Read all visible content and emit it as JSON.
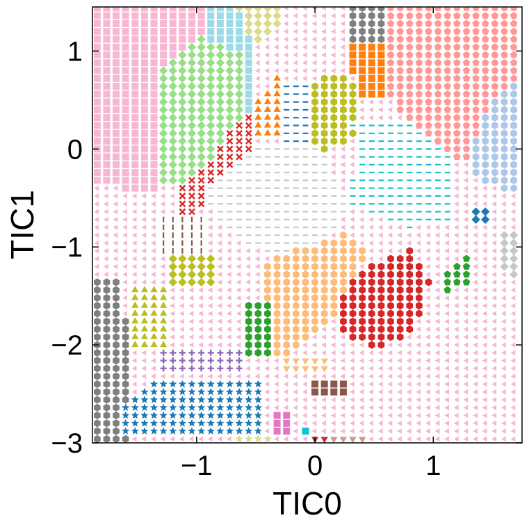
{
  "chart_data": {
    "type": "scatter",
    "title": "",
    "xlabel": "TIC0",
    "ylabel": "TIC1",
    "xlim": [
      -1.88,
      1.75
    ],
    "ylim": [
      -3.0,
      1.45
    ],
    "grid": false,
    "legend": "none",
    "x_ticks": [
      -1,
      0,
      1
    ],
    "x_tick_labels": [
      "−1",
      "0",
      "1"
    ],
    "y_ticks": [
      -3,
      -2,
      -1,
      0,
      1
    ],
    "y_tick_labels": [
      "−3",
      "−2",
      "−1",
      "0",
      "1"
    ],
    "grid_step": 0.08,
    "background_state": {
      "name": "state-pink-left-triangle",
      "marker": "triangle-left",
      "color": "#f7b6d2"
    },
    "regions": [
      {
        "name": "state-pink-square",
        "marker": "square",
        "color": "#f7b6d2",
        "polygon": [
          [
            -1.88,
            1.45
          ],
          [
            -0.95,
            1.45
          ],
          [
            -0.95,
            1.15
          ],
          [
            -1.3,
            0.85
          ],
          [
            -1.35,
            -0.45
          ],
          [
            -1.88,
            -0.35
          ]
        ]
      },
      {
        "name": "state-lightgreen-diamond",
        "marker": "diamond",
        "color": "#98df8a",
        "polygon": [
          [
            -0.95,
            1.2
          ],
          [
            -0.62,
            0.95
          ],
          [
            -0.62,
            0.35
          ],
          [
            -0.85,
            -0.05
          ],
          [
            -1.1,
            -0.35
          ],
          [
            -1.35,
            -0.35
          ],
          [
            -1.35,
            0.75
          ],
          [
            -1.2,
            0.95
          ]
        ]
      },
      {
        "name": "state-skyblue-square",
        "marker": "square",
        "color": "#9edae5",
        "polygon": [
          [
            -0.95,
            1.45
          ],
          [
            -0.65,
            1.45
          ],
          [
            -0.5,
            1.1
          ],
          [
            -0.52,
            0.35
          ],
          [
            -0.62,
            0.35
          ],
          [
            -0.62,
            0.95
          ],
          [
            -0.95,
            1.15
          ]
        ]
      },
      {
        "name": "state-olive-diamond",
        "marker": "diamond",
        "color": "#dbdb8d",
        "polygon": [
          [
            -0.65,
            1.45
          ],
          [
            -0.3,
            1.45
          ],
          [
            -0.3,
            1.25
          ],
          [
            -0.5,
            1.1
          ],
          [
            -0.6,
            1.25
          ]
        ]
      },
      {
        "name": "state-salmon-pentagon",
        "marker": "pentagon",
        "color": "#ff9896",
        "polygon": [
          [
            0.62,
            1.45
          ],
          [
            1.75,
            1.45
          ],
          [
            1.75,
            0.72
          ],
          [
            1.6,
            0.55
          ],
          [
            1.45,
            0.4
          ],
          [
            1.3,
            -0.1
          ],
          [
            0.8,
            -0.1
          ],
          [
            0.72,
            0.4
          ],
          [
            0.62,
            0.6
          ]
        ]
      },
      {
        "name": "state-lightblue-hexagon",
        "marker": "hexagon",
        "color": "#aec7e8",
        "polygon": [
          [
            1.45,
            0.4
          ],
          [
            1.6,
            0.6
          ],
          [
            1.75,
            0.72
          ],
          [
            1.75,
            -0.45
          ],
          [
            1.4,
            -0.35
          ],
          [
            1.3,
            -0.1
          ]
        ]
      },
      {
        "name": "state-orange-square",
        "marker": "square",
        "color": "#ff7f0e",
        "polygon": [
          [
            0.3,
            1.05
          ],
          [
            0.62,
            1.05
          ],
          [
            0.62,
            0.5
          ],
          [
            0.4,
            0.5
          ],
          [
            0.3,
            0.8
          ]
        ]
      },
      {
        "name": "state-gray-hexagon",
        "marker": "hexagon",
        "color": "#7f7f7f",
        "polygon": [
          [
            0.3,
            1.45
          ],
          [
            0.62,
            1.45
          ],
          [
            0.62,
            1.1
          ],
          [
            0.3,
            1.1
          ]
        ]
      },
      {
        "name": "state-olive-hexagon",
        "marker": "hexagon",
        "color": "#bcbd22",
        "polygon": [
          [
            -0.05,
            0.7
          ],
          [
            0.25,
            0.75
          ],
          [
            0.4,
            0.55
          ],
          [
            0.35,
            0.1
          ],
          [
            0.05,
            -0.02
          ],
          [
            -0.1,
            0.25
          ]
        ]
      },
      {
        "name": "state-blue-hline",
        "marker": "hline",
        "color": "#1f77b4",
        "polygon": [
          [
            -0.25,
            0.72
          ],
          [
            0.0,
            0.72
          ],
          [
            -0.05,
            0.02
          ],
          [
            -0.25,
            0.02
          ]
        ]
      },
      {
        "name": "state-orange-triangle",
        "marker": "triangle-up",
        "color": "#ff7f0e",
        "polygon": [
          [
            -0.55,
            0.48
          ],
          [
            -0.25,
            0.8
          ],
          [
            -0.25,
            0.15
          ],
          [
            -0.55,
            0.15
          ]
        ]
      },
      {
        "name": "state-cyan-hline",
        "marker": "hline",
        "color": "#17becf",
        "polygon": [
          [
            0.3,
            0.3
          ],
          [
            0.8,
            0.3
          ],
          [
            1.2,
            -0.1
          ],
          [
            1.2,
            -0.7
          ],
          [
            0.8,
            -0.8
          ],
          [
            0.3,
            -0.55
          ],
          [
            0.35,
            0.05
          ]
        ]
      },
      {
        "name": "state-red-x",
        "marker": "x",
        "color": "#d62728",
        "polygon": [
          [
            -0.62,
            0.35
          ],
          [
            -0.52,
            0.35
          ],
          [
            -0.5,
            0.1
          ],
          [
            -0.7,
            -0.35
          ],
          [
            -1.1,
            -0.7
          ],
          [
            -1.2,
            -0.45
          ],
          [
            -0.85,
            -0.05
          ]
        ]
      },
      {
        "name": "state-lightgray-hline",
        "marker": "hline",
        "color": "#c7c7c7",
        "polygon": [
          [
            -0.5,
            0.05
          ],
          [
            0.05,
            0.0
          ],
          [
            0.3,
            -0.55
          ],
          [
            0.15,
            -0.9
          ],
          [
            -0.3,
            -1.1
          ],
          [
            -0.7,
            -0.9
          ],
          [
            -0.95,
            -0.45
          ]
        ]
      },
      {
        "name": "state-brown-vline",
        "marker": "vline",
        "color": "#8c564b",
        "polygon": [
          [
            -1.3,
            -0.7
          ],
          [
            -0.95,
            -0.7
          ],
          [
            -0.9,
            -1.05
          ],
          [
            -1.3,
            -1.05
          ]
        ]
      },
      {
        "name": "state-olive-diamond-mid",
        "marker": "diamond",
        "color": "#bcbd22",
        "polygon": [
          [
            -1.22,
            -1.05
          ],
          [
            -0.86,
            -1.05
          ],
          [
            -0.86,
            -1.42
          ],
          [
            -1.22,
            -1.42
          ]
        ]
      },
      {
        "name": "state-peach-hexagon",
        "marker": "hexagon",
        "color": "#ffbb78",
        "polygon": [
          [
            -0.4,
            -1.15
          ],
          [
            0.25,
            -0.85
          ],
          [
            0.45,
            -1.05
          ],
          [
            0.3,
            -1.4
          ],
          [
            0.15,
            -1.75
          ],
          [
            -0.3,
            -2.2
          ],
          [
            -0.4,
            -1.8
          ]
        ]
      },
      {
        "name": "state-red-hexagon",
        "marker": "hexagon",
        "color": "#d62728",
        "polygon": [
          [
            0.4,
            -1.2
          ],
          [
            0.8,
            -1.0
          ],
          [
            0.98,
            -1.35
          ],
          [
            0.85,
            -1.85
          ],
          [
            0.5,
            -2.05
          ],
          [
            0.18,
            -1.85
          ],
          [
            0.2,
            -1.5
          ]
        ]
      },
      {
        "name": "state-green-hexagon",
        "marker": "hexagon",
        "color": "#2ca02c",
        "polygon": [
          [
            -0.56,
            -1.58
          ],
          [
            -0.35,
            -1.58
          ],
          [
            -0.35,
            -2.1
          ],
          [
            -0.56,
            -2.1
          ]
        ]
      },
      {
        "name": "state-olive-triangle",
        "marker": "triangle-up",
        "color": "#bcbd22",
        "polygon": [
          [
            -1.55,
            -1.4
          ],
          [
            -1.25,
            -1.4
          ],
          [
            -1.22,
            -2.05
          ],
          [
            -1.55,
            -2.05
          ]
        ]
      },
      {
        "name": "state-gray-hexagon-left",
        "marker": "hexagon",
        "color": "#7f7f7f",
        "polygon": [
          [
            -1.88,
            -1.3
          ],
          [
            -1.65,
            -1.3
          ],
          [
            -1.55,
            -2.1
          ],
          [
            -1.6,
            -3.0
          ],
          [
            -1.88,
            -3.0
          ]
        ]
      },
      {
        "name": "state-purple-plus",
        "marker": "plus",
        "color": "#9467bd",
        "polygon": [
          [
            -1.3,
            -2.05
          ],
          [
            -0.6,
            -2.05
          ],
          [
            -0.6,
            -2.3
          ],
          [
            -1.3,
            -2.3
          ]
        ]
      },
      {
        "name": "state-blue-star",
        "marker": "star",
        "color": "#1f77b4",
        "polygon": [
          [
            -1.35,
            -2.38
          ],
          [
            -0.45,
            -2.38
          ],
          [
            -0.4,
            -2.9
          ],
          [
            -1.6,
            -2.9
          ],
          [
            -1.6,
            -2.6
          ]
        ]
      },
      {
        "name": "state-yellow-star",
        "marker": "star",
        "color": "#dbdb8d",
        "polygon": [
          [
            -0.68,
            -2.9
          ],
          [
            -0.35,
            -2.9
          ],
          [
            -0.35,
            -3.0
          ],
          [
            -0.68,
            -3.0
          ]
        ]
      },
      {
        "name": "state-magenta-square",
        "marker": "square",
        "color": "#e377c2",
        "polygon": [
          [
            -0.35,
            -2.65
          ],
          [
            -0.2,
            -2.65
          ],
          [
            -0.2,
            -2.95
          ],
          [
            -0.35,
            -2.95
          ]
        ]
      },
      {
        "name": "state-cyan-square",
        "marker": "square",
        "color": "#17becf",
        "polygon": [
          [
            -0.15,
            -2.8
          ],
          [
            -0.05,
            -2.8
          ],
          [
            -0.05,
            -2.95
          ],
          [
            -0.15,
            -2.95
          ]
        ]
      },
      {
        "name": "state-brown-square",
        "marker": "square",
        "color": "#8c564b",
        "polygon": [
          [
            0.0,
            -2.35
          ],
          [
            0.25,
            -2.35
          ],
          [
            0.25,
            -2.5
          ],
          [
            0.0,
            -2.5
          ]
        ]
      },
      {
        "name": "state-red-triangle-down",
        "marker": "triangle-down",
        "color": "#d62728",
        "polygon": [
          [
            -0.05,
            -2.88
          ],
          [
            0.1,
            -2.88
          ],
          [
            0.1,
            -3.0
          ],
          [
            -0.05,
            -3.0
          ]
        ]
      },
      {
        "name": "state-rosybrown-triangle-down",
        "marker": "triangle-down",
        "color": "#c49c94",
        "polygon": [
          [
            0.15,
            -2.88
          ],
          [
            0.45,
            -2.88
          ],
          [
            0.45,
            -3.0
          ],
          [
            0.15,
            -3.0
          ]
        ]
      },
      {
        "name": "state-gray-diamond",
        "marker": "diamond",
        "color": "#c7c7c7",
        "polygon": [
          [
            1.55,
            -0.82
          ],
          [
            1.75,
            -0.82
          ],
          [
            1.75,
            -1.32
          ],
          [
            1.62,
            -1.32
          ],
          [
            1.55,
            -1.1
          ]
        ]
      },
      {
        "name": "state-green-pentagon",
        "marker": "pentagon",
        "color": "#2ca02c",
        "polygon": [
          [
            1.12,
            -1.25
          ],
          [
            1.35,
            -1.05
          ],
          [
            1.35,
            -1.35
          ],
          [
            1.12,
            -1.48
          ]
        ]
      },
      {
        "name": "state-blue-diamond",
        "marker": "diamond",
        "color": "#1f77b4",
        "polygon": [
          [
            1.35,
            -0.58
          ],
          [
            1.52,
            -0.58
          ],
          [
            1.52,
            -0.78
          ],
          [
            1.35,
            -0.78
          ]
        ]
      },
      {
        "name": "state-peach-triangle-down",
        "marker": "triangle-down",
        "color": "#ffbb78",
        "polygon": [
          [
            -0.3,
            -2.3
          ],
          [
            0.1,
            -2.3
          ],
          [
            0.1,
            -2.15
          ],
          [
            -0.3,
            -2.1
          ]
        ]
      }
    ]
  }
}
